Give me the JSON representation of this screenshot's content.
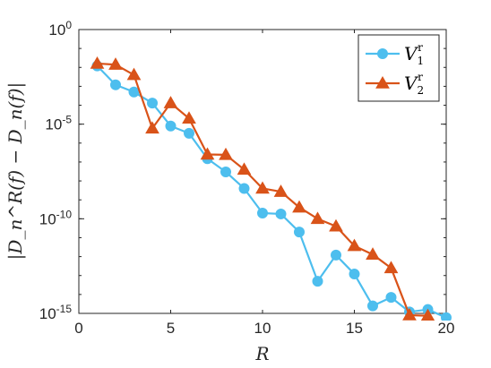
{
  "chart_data": {
    "type": "line",
    "xlabel": "R",
    "ylabel": "|D_n^R(f) − D_n(f)|",
    "xlim": [
      0,
      20
    ],
    "ylim": [
      1e-15,
      1
    ],
    "yscale": "log",
    "grid": false,
    "legend_position": "top-right",
    "x_ticks": [
      0,
      5,
      10,
      15,
      20
    ],
    "y_ticks": [
      {
        "value": 1,
        "base": "10",
        "exp": "0"
      },
      {
        "value": 1e-05,
        "base": "10",
        "exp": "-5"
      },
      {
        "value": 1e-10,
        "base": "10",
        "exp": "-10"
      },
      {
        "value": 1e-15,
        "base": "10",
        "exp": "-15"
      }
    ],
    "x": [
      1,
      2,
      3,
      4,
      5,
      6,
      7,
      8,
      9,
      10,
      11,
      12,
      13,
      14,
      15,
      16,
      17,
      18,
      19,
      20
    ],
    "series": [
      {
        "name": "V_1^r",
        "legend_main": "V",
        "legend_sub": "1",
        "legend_sup": "r",
        "color": "#4DBEEE",
        "marker": "circle",
        "values": [
          0.012,
          0.0012,
          0.0005,
          0.00013,
          8e-06,
          3.3e-06,
          1.5e-07,
          3e-08,
          4e-09,
          2e-10,
          1.8e-10,
          2e-11,
          5e-14,
          1.2e-12,
          1.2e-13,
          2.5e-15,
          7e-15,
          1.2e-15,
          1.6e-15,
          6e-16
        ]
      },
      {
        "name": "V_2^r",
        "legend_main": "V",
        "legend_sub": "2",
        "legend_sup": "r",
        "color": "#D95319",
        "marker": "triangle",
        "values": [
          0.016,
          0.014,
          0.004,
          6e-06,
          0.00013,
          2e-05,
          2.5e-07,
          2.4e-07,
          4e-08,
          4e-09,
          2.7e-09,
          4e-10,
          1e-10,
          4e-11,
          3.7e-12,
          1.3e-12,
          2.5e-13,
          8e-16,
          7.5e-16,
          4e-17
        ]
      }
    ]
  }
}
